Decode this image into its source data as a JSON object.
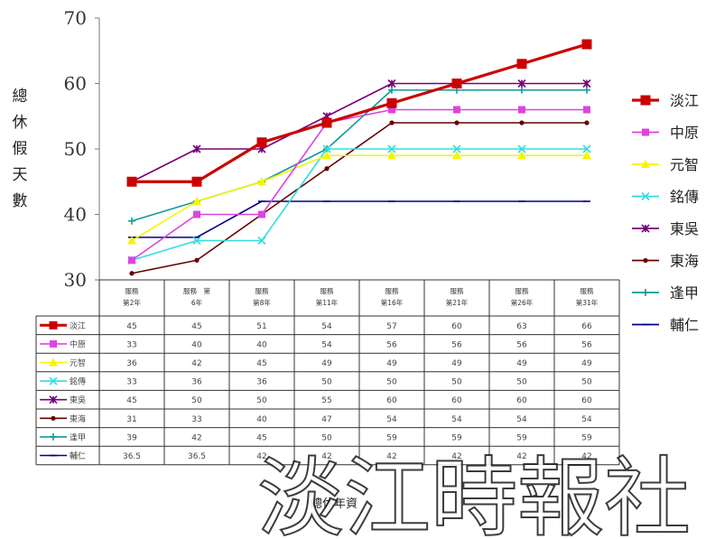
{
  "chart_data": {
    "type": "line",
    "ylabel": "總休假天數",
    "xlabel": "總休年資",
    "ylim": [
      30,
      70
    ],
    "yticks": [
      30,
      40,
      50,
      60,
      70
    ],
    "grid": false,
    "legend_position": "right",
    "categories": [
      "服務\n第2年",
      "服務　第\n6年",
      "服務\n第8年",
      "服務\n第11年",
      "服務\n第16年",
      "服務\n第21年",
      "服務\n第26年",
      "服務\n第31年"
    ],
    "series": [
      {
        "name": "淡江",
        "color": "#cc0000",
        "marker": "square",
        "values": [
          45,
          45,
          51,
          54,
          57,
          60,
          63,
          66
        ]
      },
      {
        "name": "中原",
        "color": "#dd44dd",
        "marker": "square",
        "values": [
          33,
          40,
          40,
          54,
          56,
          56,
          56,
          56
        ]
      },
      {
        "name": "元智",
        "color": "#f5f500",
        "marker": "triangle",
        "values": [
          36,
          42,
          45,
          49,
          49,
          49,
          49,
          49
        ]
      },
      {
        "name": "銘傳",
        "color": "#33dddd",
        "marker": "x",
        "values": [
          33,
          36,
          36,
          50,
          50,
          50,
          50,
          50
        ]
      },
      {
        "name": "東吳",
        "color": "#770077",
        "marker": "star",
        "values": [
          45,
          50,
          50,
          55,
          60,
          60,
          60,
          60
        ]
      },
      {
        "name": "東海",
        "color": "#660000",
        "marker": "circle",
        "values": [
          31,
          33,
          40,
          47,
          54,
          54,
          54,
          54
        ]
      },
      {
        "name": "逢甲",
        "color": "#119999",
        "marker": "plus",
        "values": [
          39,
          42,
          45,
          50,
          59,
          59,
          59,
          59
        ]
      },
      {
        "name": "輔仁",
        "color": "#000088",
        "marker": "line",
        "values": [
          36.5,
          36.5,
          42,
          42,
          42,
          42,
          42,
          42
        ]
      }
    ],
    "table_values": [
      [
        "45",
        "45",
        "51",
        "54",
        "57",
        "60",
        "63",
        "66"
      ],
      [
        "33",
        "40",
        "40",
        "54",
        "56",
        "56",
        "56",
        "56"
      ],
      [
        "36",
        "42",
        "45",
        "49",
        "49",
        "49",
        "49",
        "49"
      ],
      [
        "33",
        "36",
        "36",
        "50",
        "50",
        "50",
        "50",
        "50"
      ],
      [
        "45",
        "50",
        "50",
        "55",
        "60",
        "60",
        "60",
        "60"
      ],
      [
        "31",
        "33",
        "40",
        "47",
        "54",
        "54",
        "54",
        "54"
      ],
      [
        "39",
        "42",
        "45",
        "50",
        "59",
        "59",
        "59",
        "59"
      ],
      [
        "36.5",
        "36.5",
        "42",
        "42",
        "42",
        "42",
        "42",
        "42"
      ]
    ]
  },
  "watermark": "淡江時報社"
}
